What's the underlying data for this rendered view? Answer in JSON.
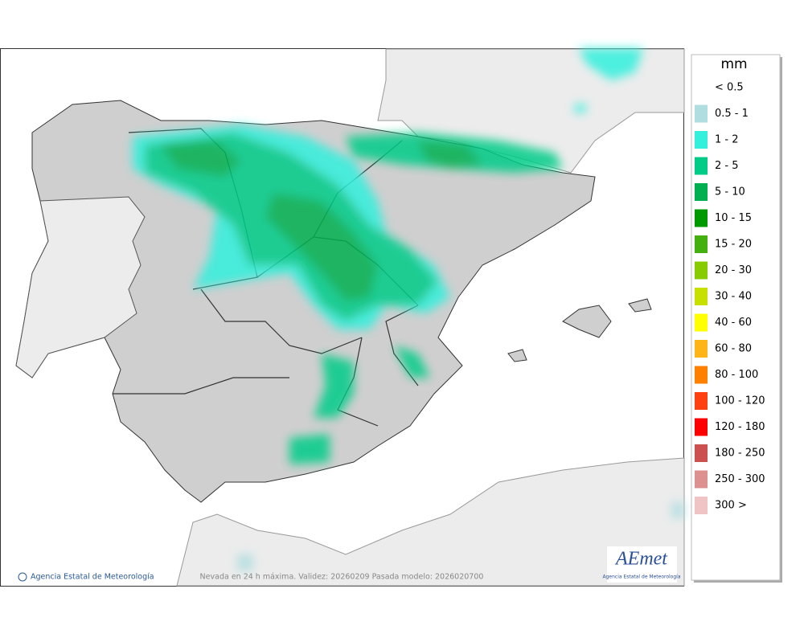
{
  "map": {
    "footer_credit": "Agencia Estatal de Meteorología",
    "footer_caption": "Nevada en 24 h máxima. Validez: 20260209 Pasada modelo: 2026020700",
    "logo": {
      "name": "AEmet",
      "subtitle": "Agencia Estatal de Meteorología"
    }
  },
  "legend": {
    "title": "mm",
    "items": [
      {
        "label": "< 0.5"
      },
      {
        "label": "0.5 - 1",
        "color": "#b0dde0"
      },
      {
        "label": "1 - 2",
        "color": "#33f0dd"
      },
      {
        "label": "2 - 5",
        "color": "#00cc88"
      },
      {
        "label": "5 - 10",
        "color": "#00b050"
      },
      {
        "label": "10 - 15",
        "color": "#009900"
      },
      {
        "label": "15 - 20",
        "color": "#44b010"
      },
      {
        "label": "20 - 30",
        "color": "#88cc00"
      },
      {
        "label": "30 - 40",
        "color": "#c8e000"
      },
      {
        "label": "40 - 60",
        "color": "#ffff00"
      },
      {
        "label": "60 - 80",
        "color": "#ffb418"
      },
      {
        "label": "80 - 100",
        "color": "#ff8000"
      },
      {
        "label": "100 - 120",
        "color": "#ff4010"
      },
      {
        "label": "120 - 180",
        "color": "#ff0000"
      },
      {
        "label": "180 - 250",
        "color": "#cc5050"
      },
      {
        "label": "250 - 300",
        "color": "#dd9090"
      },
      {
        "label": "300 >",
        "color": "#f0c4c4"
      }
    ]
  }
}
